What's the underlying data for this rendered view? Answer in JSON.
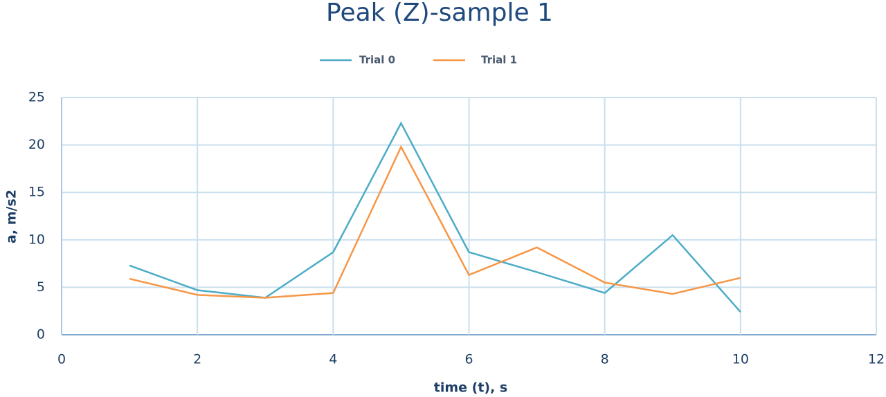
{
  "chart_data": {
    "type": "line",
    "title": "Peak (Z)-sample 1",
    "x_label": "time (t),  s",
    "y_label": "a, m/s2",
    "x": [
      1,
      2,
      3,
      4,
      5,
      6,
      7,
      8,
      9,
      10
    ],
    "series": [
      {
        "name": "Trial 0",
        "color": "#4bacc6",
        "values": [
          7.3,
          4.7,
          3.9,
          8.7,
          22.3,
          8.7,
          6.6,
          4.4,
          10.5,
          2.4
        ]
      },
      {
        "name": "Trial 1",
        "color": "#f79646",
        "values": [
          5.9,
          4.2,
          3.9,
          4.4,
          19.8,
          6.3,
          9.2,
          5.5,
          4.3,
          6.0
        ]
      }
    ],
    "xlim": [
      0,
      12
    ],
    "xticks": [
      0,
      2,
      4,
      6,
      8,
      10,
      12
    ],
    "ylim": [
      0,
      25
    ],
    "yticks": [
      0,
      5,
      10,
      15,
      20,
      25
    ],
    "grid": true,
    "legend": "top"
  }
}
